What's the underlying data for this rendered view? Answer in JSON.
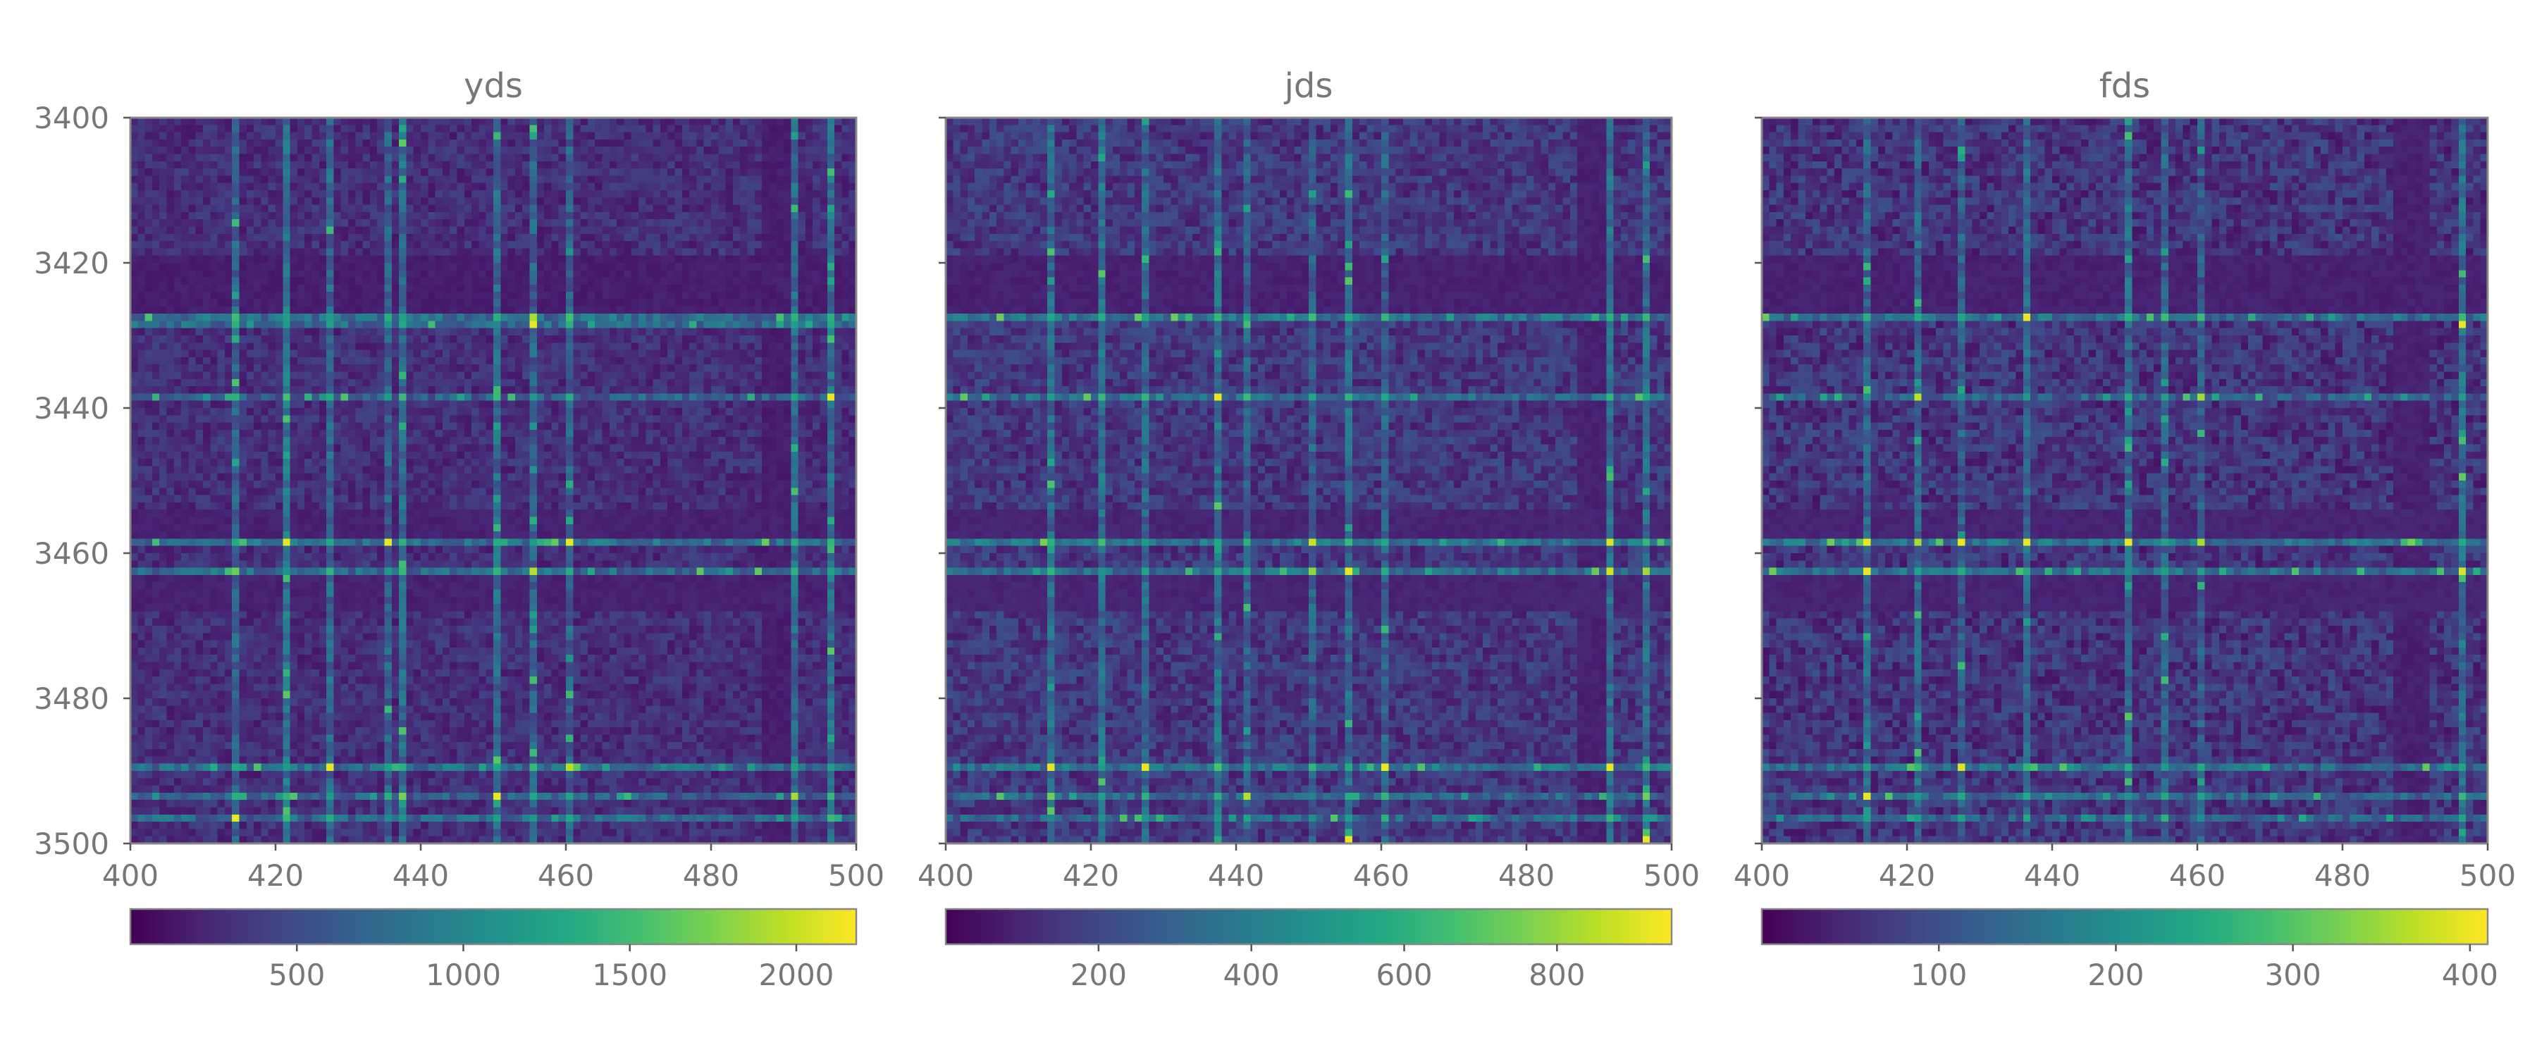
{
  "chart_data": [
    {
      "type": "heatmap",
      "title": "yds",
      "x_range": [
        400,
        500
      ],
      "y_range": [
        3400,
        3500
      ],
      "x_ticks": [
        "400",
        "420",
        "440",
        "460",
        "480",
        "500"
      ],
      "y_ticks": [
        "3400",
        "3420",
        "3440",
        "3460",
        "3480",
        "3500"
      ],
      "colorbar": {
        "range": [
          0,
          2180
        ],
        "ticks": [
          "500",
          "1000",
          "1500",
          "2000"
        ],
        "orientation": "horizontal"
      },
      "colormap": "viridis",
      "cell_size": 1,
      "base_level": 0.13,
      "noise": 0.07,
      "seed": 17,
      "dark_row_bands": [
        [
          3419,
          3427,
          0.06
        ],
        [
          3454,
          3458,
          0.07
        ],
        [
          3463,
          3467,
          0.07
        ]
      ],
      "dark_col_bands": [
        [
          487,
          491,
          0.06
        ]
      ],
      "bright_rows": [
        [
          3427,
          0.36
        ],
        [
          3428,
          0.34
        ],
        [
          3438,
          0.3
        ],
        [
          3458,
          0.36
        ],
        [
          3462,
          0.34
        ],
        [
          3489,
          0.34
        ],
        [
          3493,
          0.3
        ],
        [
          3496,
          0.32
        ]
      ],
      "bright_cols": [
        [
          414,
          0.32
        ],
        [
          421,
          0.38
        ],
        [
          427,
          0.32
        ],
        [
          435,
          0.3
        ],
        [
          437,
          0.34
        ],
        [
          450,
          0.34
        ],
        [
          455,
          0.3
        ],
        [
          460,
          0.3
        ],
        [
          491,
          0.34
        ],
        [
          496,
          0.36
        ]
      ],
      "hot_cells": [
        [
          421,
          3458
        ],
        [
          450,
          3493
        ],
        [
          496,
          3438
        ],
        [
          460,
          3458
        ],
        [
          455,
          3428
        ],
        [
          435,
          3458
        ],
        [
          414,
          3496
        ]
      ]
    },
    {
      "type": "heatmap",
      "title": "jds",
      "x_range": [
        400,
        500
      ],
      "y_range": [
        3400,
        3500
      ],
      "x_ticks": [
        "400",
        "420",
        "440",
        "460",
        "480",
        "500"
      ],
      "y_ticks": [
        "3400",
        "3420",
        "3440",
        "3460",
        "3480",
        "3500"
      ],
      "colorbar": {
        "range": [
          0,
          950
        ],
        "ticks": [
          "200",
          "400",
          "600",
          "800"
        ],
        "orientation": "horizontal"
      },
      "colormap": "viridis",
      "cell_size": 1,
      "base_level": 0.16,
      "noise": 0.09,
      "seed": 29,
      "dark_row_bands": [
        [
          3419,
          3427,
          0.07
        ],
        [
          3454,
          3458,
          0.08
        ],
        [
          3463,
          3467,
          0.08
        ]
      ],
      "dark_col_bands": [
        [
          487,
          491,
          0.07
        ]
      ],
      "bright_rows": [
        [
          3427,
          0.38
        ],
        [
          3438,
          0.34
        ],
        [
          3458,
          0.38
        ],
        [
          3462,
          0.36
        ],
        [
          3489,
          0.38
        ],
        [
          3493,
          0.32
        ],
        [
          3496,
          0.32
        ]
      ],
      "bright_cols": [
        [
          414,
          0.34
        ],
        [
          421,
          0.36
        ],
        [
          427,
          0.32
        ],
        [
          437,
          0.36
        ],
        [
          441,
          0.3
        ],
        [
          450,
          0.3
        ],
        [
          455,
          0.34
        ],
        [
          460,
          0.3
        ],
        [
          491,
          0.36
        ],
        [
          496,
          0.34
        ]
      ],
      "hot_cells": [
        [
          427,
          3489
        ],
        [
          437,
          3438
        ],
        [
          455,
          3462
        ],
        [
          491,
          3489
        ],
        [
          496,
          3499
        ],
        [
          460,
          3489
        ],
        [
          455,
          3499
        ]
      ]
    },
    {
      "type": "heatmap",
      "title": "fds",
      "x_range": [
        400,
        500
      ],
      "y_range": [
        3400,
        3500
      ],
      "x_ticks": [
        "400",
        "420",
        "440",
        "460",
        "480",
        "500"
      ],
      "y_ticks": [
        "3400",
        "3420",
        "3440",
        "3460",
        "3480",
        "3500"
      ],
      "colorbar": {
        "range": [
          0,
          410
        ],
        "ticks": [
          "100",
          "200",
          "300",
          "400"
        ],
        "orientation": "horizontal"
      },
      "colormap": "viridis",
      "cell_size": 1,
      "base_level": 0.15,
      "noise": 0.1,
      "seed": 43,
      "dark_row_bands": [
        [
          3419,
          3427,
          0.07
        ],
        [
          3454,
          3458,
          0.08
        ],
        [
          3463,
          3467,
          0.08
        ]
      ],
      "dark_col_bands": [
        [
          487,
          491,
          0.07
        ]
      ],
      "bright_rows": [
        [
          3427,
          0.36
        ],
        [
          3438,
          0.3
        ],
        [
          3458,
          0.38
        ],
        [
          3462,
          0.36
        ],
        [
          3489,
          0.34
        ],
        [
          3493,
          0.32
        ],
        [
          3496,
          0.3
        ]
      ],
      "bright_cols": [
        [
          414,
          0.32
        ],
        [
          421,
          0.34
        ],
        [
          427,
          0.3
        ],
        [
          436,
          0.34
        ],
        [
          450,
          0.34
        ],
        [
          455,
          0.3
        ],
        [
          460,
          0.28
        ],
        [
          496,
          0.36
        ]
      ],
      "hot_cells": [
        [
          414,
          3458
        ],
        [
          414,
          3462
        ],
        [
          427,
          3458
        ],
        [
          436,
          3427
        ],
        [
          436,
          3458
        ],
        [
          496,
          3428
        ],
        [
          414,
          3493
        ],
        [
          450,
          3458
        ]
      ]
    }
  ]
}
